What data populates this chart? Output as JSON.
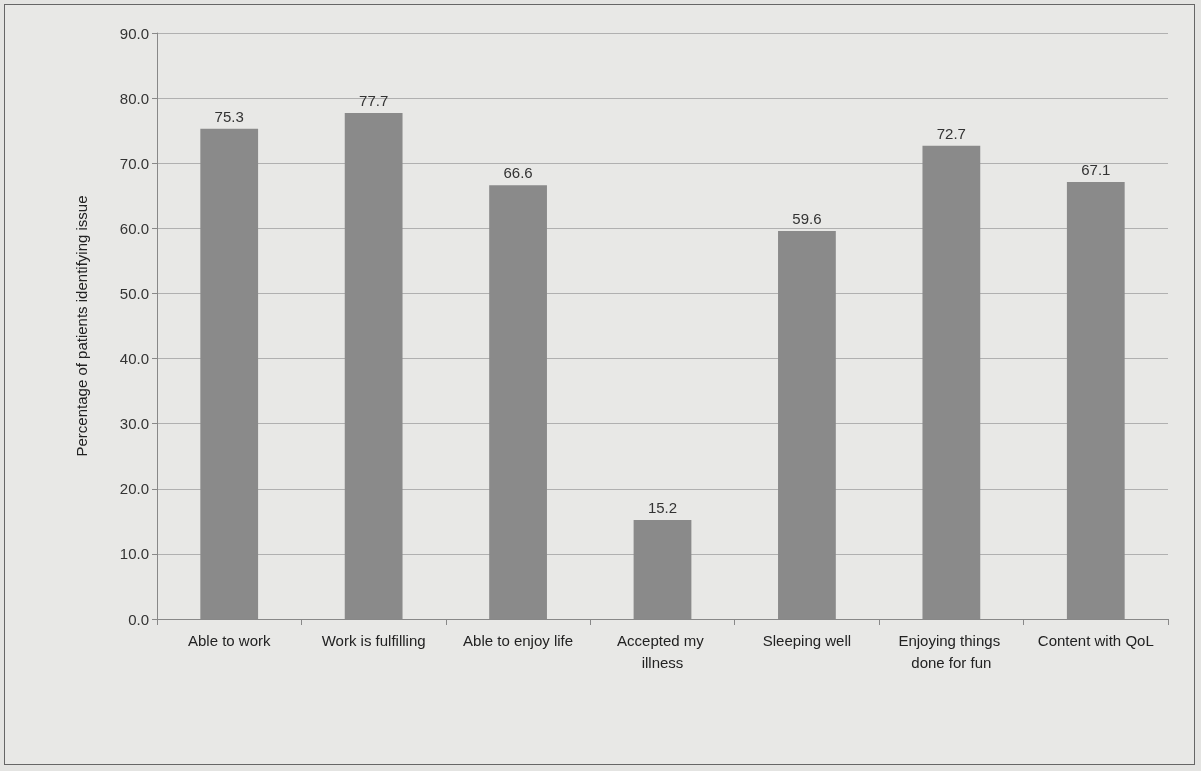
{
  "chart_data": {
    "type": "bar",
    "ylabel": "Percentage of patients identifying issue",
    "categories": [
      "Able to work",
      "Work is fulfilling",
      "Able to enjoy life",
      "Accepted my illness",
      "Sleeping well",
      "Enjoying things done for fun",
      "Content with QoL"
    ],
    "values": [
      75.3,
      77.7,
      66.6,
      15.2,
      59.6,
      72.7,
      67.1
    ],
    "color": "#8a8a8a",
    "ylim": [
      0,
      90
    ],
    "yticks": [
      {
        "value": 0,
        "label": "0.0"
      },
      {
        "value": 10,
        "label": "10.0"
      },
      {
        "value": 20,
        "label": "20.0"
      },
      {
        "value": 30,
        "label": "30.0"
      },
      {
        "value": 40,
        "label": "40.0"
      },
      {
        "value": 50,
        "label": "50.0"
      },
      {
        "value": 60,
        "label": "60.0"
      },
      {
        "value": 70,
        "label": "70.0"
      },
      {
        "value": 80,
        "label": "80.0"
      },
      {
        "value": 90,
        "label": "90.0"
      }
    ],
    "grid": "y",
    "data_labels": true
  }
}
